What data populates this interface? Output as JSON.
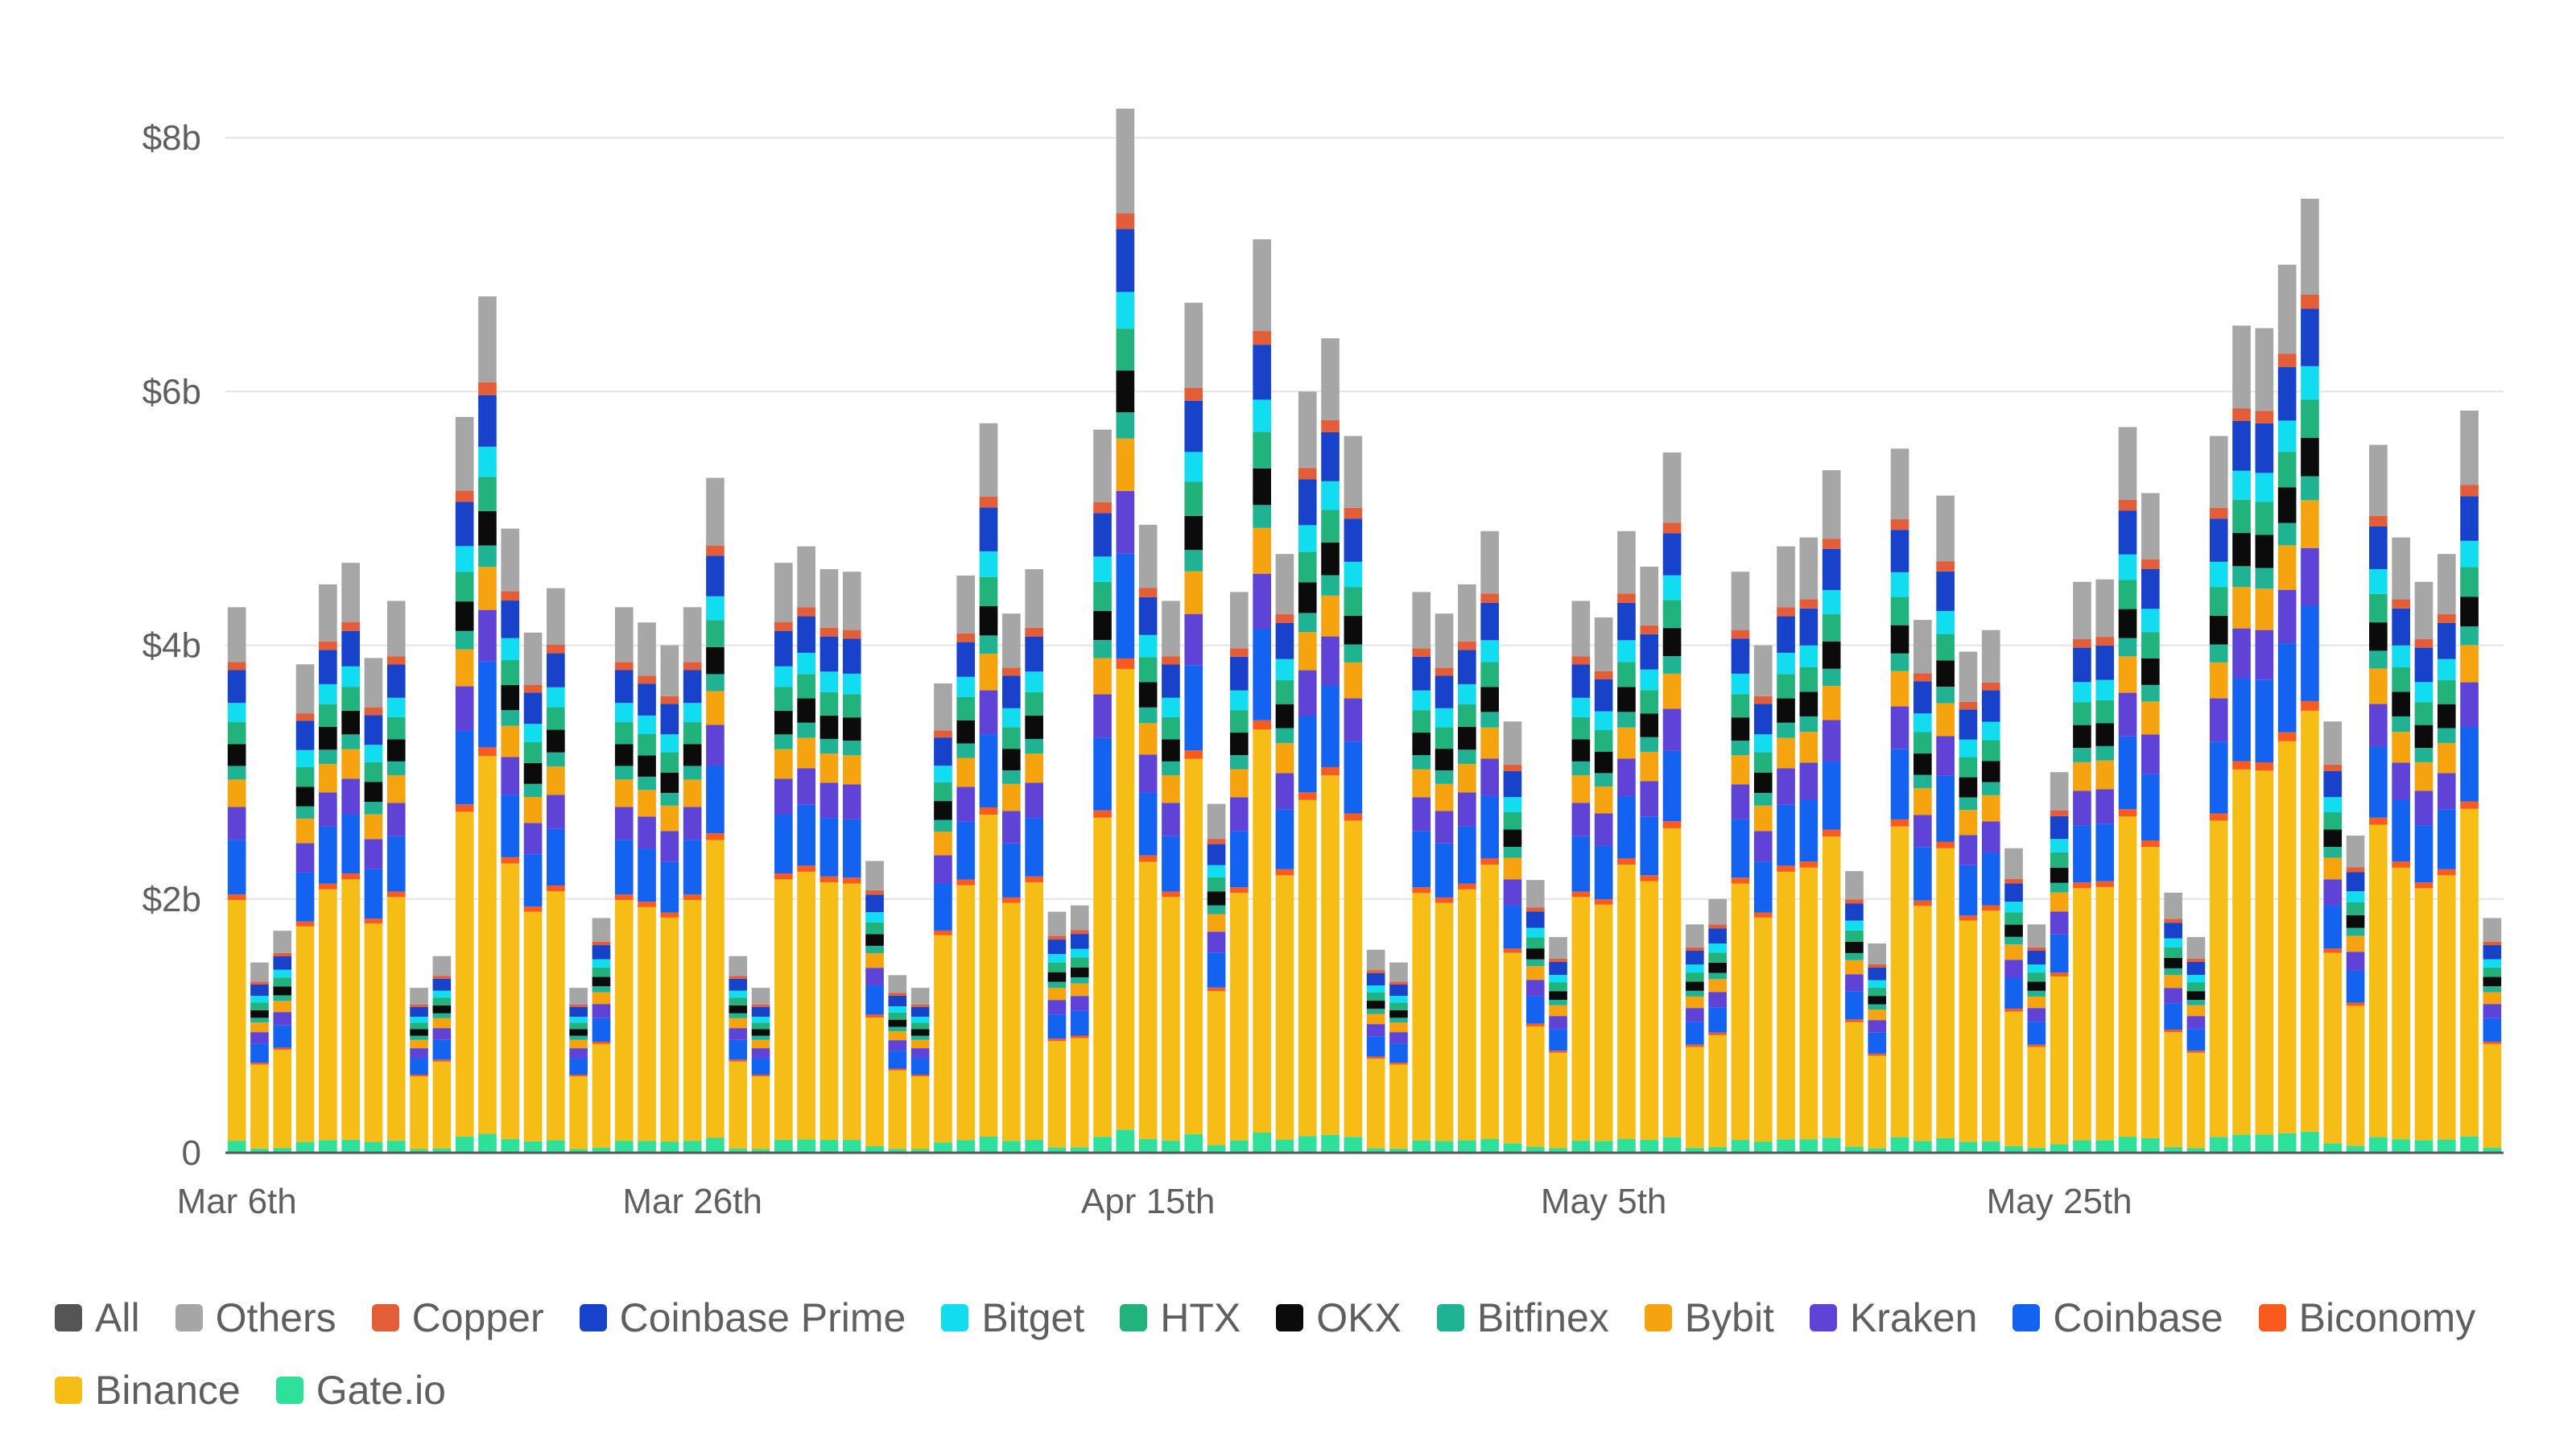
{
  "chart_data": {
    "type": "bar",
    "stacked": true,
    "title": "",
    "xlabel": "",
    "ylabel": "",
    "y_unit": "billions USD",
    "ylim": [
      0,
      8.3
    ],
    "yticks": [
      {
        "value": 0,
        "label": "0"
      },
      {
        "value": 2,
        "label": "$2b"
      },
      {
        "value": 4,
        "label": "$4b"
      },
      {
        "value": 6,
        "label": "$6b"
      },
      {
        "value": 8,
        "label": "$8b"
      }
    ],
    "x_start_date": "Mar 6th",
    "xticks": [
      {
        "index": 0,
        "label": "Mar 6th"
      },
      {
        "index": 20,
        "label": "Mar 26th"
      },
      {
        "index": 40,
        "label": "Apr 15th"
      },
      {
        "index": 60,
        "label": "May 5th"
      },
      {
        "index": 80,
        "label": "May 25th"
      }
    ],
    "grid": "horizontal",
    "legend_position": "bottom",
    "totals": [
      4.3,
      1.5,
      1.75,
      3.85,
      4.48,
      4.65,
      3.9,
      4.35,
      1.3,
      1.55,
      5.8,
      6.75,
      4.92,
      4.1,
      4.45,
      1.3,
      1.85,
      4.3,
      4.18,
      4.0,
      4.3,
      5.32,
      1.55,
      1.3,
      4.65,
      4.78,
      4.6,
      4.58,
      2.3,
      1.4,
      1.3,
      3.7,
      4.55,
      5.75,
      4.25,
      4.6,
      1.9,
      1.95,
      5.7,
      8.23,
      4.95,
      4.35,
      6.7,
      2.75,
      4.42,
      7.2,
      4.72,
      6.0,
      6.42,
      5.65,
      1.6,
      1.5,
      4.42,
      4.25,
      4.48,
      4.9,
      3.4,
      2.15,
      1.7,
      4.35,
      4.22,
      4.9,
      4.62,
      5.52,
      1.8,
      2.0,
      4.58,
      4.0,
      4.78,
      4.85,
      5.38,
      2.22,
      1.65,
      5.55,
      4.2,
      5.18,
      3.95,
      4.12,
      2.4,
      1.8,
      3.0,
      4.5,
      4.52,
      5.72,
      5.2,
      2.05,
      1.7,
      5.65,
      6.52,
      6.5,
      7.0,
      7.52,
      3.4,
      2.5,
      5.58,
      4.85,
      4.5,
      4.72,
      5.85,
      1.85
    ],
    "series_stack_order_bottom_to_top": [
      "Gate.io",
      "Binance",
      "Biconomy",
      "Coinbase",
      "Kraken",
      "Bybit",
      "Bitfinex",
      "OKX",
      "HTX",
      "Bitget",
      "Coinbase Prime",
      "Copper",
      "Others"
    ],
    "composition_note_total_fraction": {
      "Gate.io": 0.022,
      "Binance": 0.44,
      "Biconomy": 0.01,
      "Coinbase": 0.1,
      "Kraken": 0.06,
      "Bybit": 0.05,
      "Bitfinex": 0.025,
      "OKX": 0.04,
      "HTX": 0.04,
      "Bitget": 0.035,
      "Coinbase Prime": 0.06,
      "Copper": 0.015,
      "Others": 0.1
    },
    "series": [
      {
        "name": "All",
        "color": "#555555"
      },
      {
        "name": "Others",
        "color": "#a6a6a6"
      },
      {
        "name": "Copper",
        "color": "#e35d38"
      },
      {
        "name": "Coinbase Prime",
        "color": "#1742c9"
      },
      {
        "name": "Bitget",
        "color": "#12dcf0"
      },
      {
        "name": "HTX",
        "color": "#22b27c"
      },
      {
        "name": "OKX",
        "color": "#0b0b0b"
      },
      {
        "name": "Bitfinex",
        "color": "#1fb394"
      },
      {
        "name": "Bybit",
        "color": "#f6a310"
      },
      {
        "name": "Kraken",
        "color": "#5f43d6"
      },
      {
        "name": "Coinbase",
        "color": "#1463f0"
      },
      {
        "name": "Biconomy",
        "color": "#f95a1e"
      },
      {
        "name": "Binance",
        "color": "#f7bd17"
      },
      {
        "name": "Gate.io",
        "color": "#2fe09a"
      }
    ]
  }
}
